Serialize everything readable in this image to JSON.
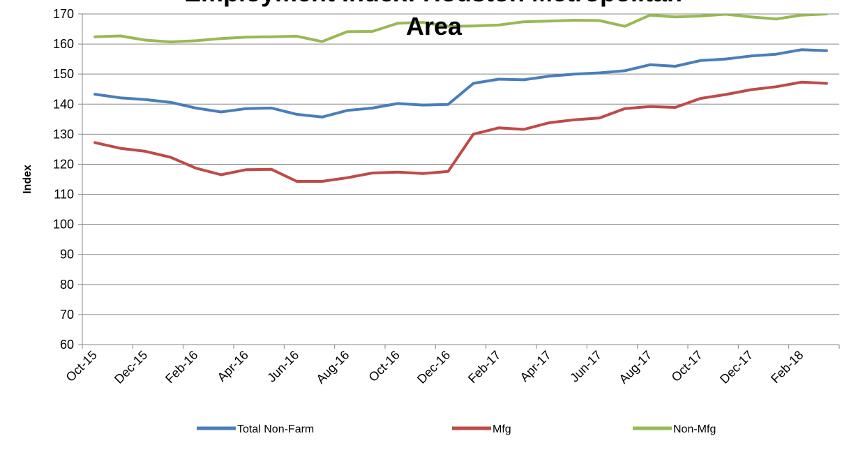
{
  "chart_data": {
    "type": "line",
    "title_lines": [
      "Employment Index: Houston Metropolitan",
      "Area"
    ],
    "xlabel": "",
    "ylabel": "Index",
    "ylim": [
      60,
      170
    ],
    "ytick_step": 10,
    "grid": true,
    "legend_position": "bottom",
    "x": [
      "Oct-15",
      "Nov-15",
      "Dec-15",
      "Jan-16",
      "Feb-16",
      "Mar-16",
      "Apr-16",
      "May-16",
      "Jun-16",
      "Jul-16",
      "Aug-16",
      "Sep-16",
      "Oct-16",
      "Nov-16",
      "Dec-16",
      "Jan-17",
      "Feb-17",
      "Mar-17",
      "Apr-17",
      "May-17",
      "Jun-17",
      "Jul-17",
      "Aug-17",
      "Sep-17",
      "Oct-17",
      "Nov-17",
      "Dec-17",
      "Jan-18",
      "Feb-18",
      "Mar-18"
    ],
    "x_tick_labels": [
      "Oct-15",
      "Dec-15",
      "Feb-16",
      "Apr-16",
      "Jun-16",
      "Aug-16",
      "Oct-16",
      "Dec-16",
      "Feb-17",
      "Apr-17",
      "Jun-17",
      "Aug-17",
      "Oct-17",
      "Dec-17",
      "Feb-18"
    ],
    "series": [
      {
        "name": "Total Non-Farm",
        "color": "#4a7ebb",
        "values": [
          143.3,
          142.1,
          141.5,
          140.6,
          138.7,
          137.4,
          138.5,
          138.7,
          136.6,
          135.7,
          137.9,
          138.7,
          140.2,
          139.7,
          139.9,
          146.9,
          148.3,
          148.1,
          149.3,
          150.0,
          150.4,
          151.1,
          153.1,
          152.6,
          154.5,
          155.0,
          156.0,
          156.6,
          158.1,
          157.8
        ]
      },
      {
        "name": "Mfg",
        "color": "#be4b48",
        "values": [
          127.2,
          125.3,
          124.3,
          122.3,
          118.7,
          116.5,
          118.2,
          118.3,
          114.3,
          114.3,
          115.5,
          117.1,
          117.4,
          116.9,
          117.6,
          130.0,
          132.1,
          131.6,
          133.8,
          134.8,
          135.4,
          138.5,
          139.2,
          138.9,
          141.9,
          143.2,
          144.8,
          145.8,
          147.3,
          146.9
        ]
      },
      {
        "name": "Non-Mfg",
        "color": "#98b954",
        "values": [
          162.4,
          162.7,
          161.3,
          160.7,
          161.1,
          161.8,
          162.3,
          162.4,
          162.6,
          160.8,
          164.1,
          164.2,
          166.9,
          167.2,
          165.9,
          166.0,
          166.3,
          167.4,
          167.6,
          167.9,
          167.8,
          165.9,
          169.6,
          169.0,
          169.3,
          169.9,
          169.0,
          168.3,
          169.6,
          170.0
        ]
      }
    ]
  }
}
